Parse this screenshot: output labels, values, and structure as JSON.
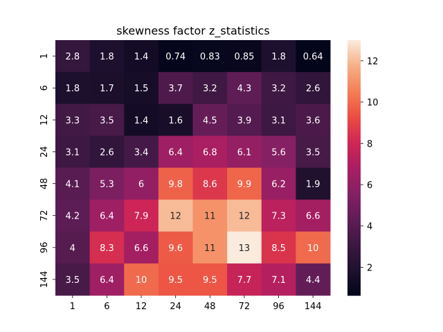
{
  "chart_data": {
    "type": "heatmap",
    "title": "skewness factor z_statistics",
    "xlabel": "",
    "ylabel": "",
    "x_categories": [
      "1",
      "6",
      "12",
      "24",
      "48",
      "72",
      "96",
      "144"
    ],
    "y_categories": [
      "1",
      "6",
      "12",
      "24",
      "48",
      "72",
      "96",
      "144"
    ],
    "values": [
      [
        2.8,
        1.8,
        1.4,
        0.74,
        0.83,
        0.85,
        1.8,
        0.64
      ],
      [
        1.8,
        1.7,
        1.5,
        3.7,
        3.2,
        4.3,
        3.2,
        2.6
      ],
      [
        3.3,
        3.5,
        1.4,
        1.6,
        4.5,
        3.9,
        3.1,
        3.6
      ],
      [
        3.1,
        2.6,
        3.4,
        6.4,
        6.8,
        6.1,
        5.6,
        3.5
      ],
      [
        4.1,
        5.3,
        6.0,
        9.8,
        8.6,
        9.9,
        6.2,
        1.9
      ],
      [
        4.2,
        6.4,
        7.9,
        12.0,
        11.0,
        12.0,
        7.3,
        6.6
      ],
      [
        4.0,
        8.3,
        6.6,
        9.6,
        11.0,
        13.0,
        8.5,
        10.0
      ],
      [
        3.5,
        6.4,
        10.0,
        9.5,
        9.5,
        7.7,
        7.1,
        4.4
      ]
    ],
    "cell_labels": [
      [
        "2.8",
        "1.8",
        "1.4",
        "0.74",
        "0.83",
        "0.85",
        "1.8",
        "0.64"
      ],
      [
        "1.8",
        "1.7",
        "1.5",
        "3.7",
        "3.2",
        "4.3",
        "3.2",
        "2.6"
      ],
      [
        "3.3",
        "3.5",
        "1.4",
        "1.6",
        "4.5",
        "3.9",
        "3.1",
        "3.6"
      ],
      [
        "3.1",
        "2.6",
        "3.4",
        "6.4",
        "6.8",
        "6.1",
        "5.6",
        "3.5"
      ],
      [
        "4.1",
        "5.3",
        "6",
        "9.8",
        "8.6",
        "9.9",
        "6.2",
        "1.9"
      ],
      [
        "4.2",
        "6.4",
        "7.9",
        "12",
        "11",
        "12",
        "7.3",
        "6.6"
      ],
      [
        "4",
        "8.3",
        "6.6",
        "9.6",
        "11",
        "13",
        "8.5",
        "10"
      ],
      [
        "3.5",
        "6.4",
        "10",
        "9.5",
        "9.5",
        "7.7",
        "7.1",
        "4.4"
      ]
    ],
    "colormap": "rocket",
    "vmin": 0.64,
    "vmax": 13,
    "colorbar": {
      "ticks": [
        2,
        4,
        6,
        8,
        10,
        12
      ],
      "tick_labels": [
        "2",
        "4",
        "6",
        "8",
        "10",
        "12"
      ],
      "placement": "right"
    },
    "grid": false
  }
}
